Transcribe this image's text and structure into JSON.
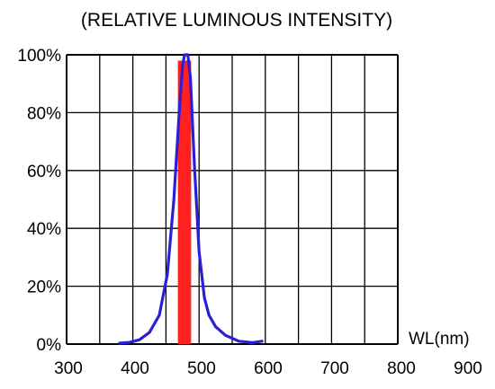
{
  "chart_data": {
    "type": "line",
    "title": "(RELATIVE LUMINOUS INTENSITY)",
    "xlabel": "WL(nm)",
    "ylabel": "",
    "xlim": [
      300,
      800
    ],
    "ylim": [
      0,
      100
    ],
    "x_ticks": [
      300,
      400,
      500,
      600,
      700,
      800,
      900
    ],
    "x_tick_labels": [
      "300",
      "400",
      "500",
      "600",
      "700",
      "800",
      "900"
    ],
    "y_ticks": [
      0,
      20,
      40,
      60,
      80,
      100
    ],
    "y_tick_labels": [
      "0%",
      "20%",
      "40%",
      "60%",
      "80%",
      "100%"
    ],
    "grid": true,
    "series": [
      {
        "color": "#2b1fd6",
        "x": [
          380,
          395,
          410,
          425,
          440,
          452,
          462,
          470,
          475,
          478,
          480,
          483,
          487,
          493,
          500,
          508,
          515,
          525,
          540,
          560,
          580,
          595
        ],
        "y": [
          0.3,
          0.6,
          1.5,
          4,
          10,
          24,
          50,
          80,
          96,
          100,
          100,
          100,
          92,
          62,
          32,
          16,
          10,
          6,
          3,
          1,
          0.5,
          1
        ]
      }
    ],
    "band": {
      "color": "#ff2020",
      "x_from": 468,
      "x_to": 488,
      "y_to": 98
    }
  }
}
